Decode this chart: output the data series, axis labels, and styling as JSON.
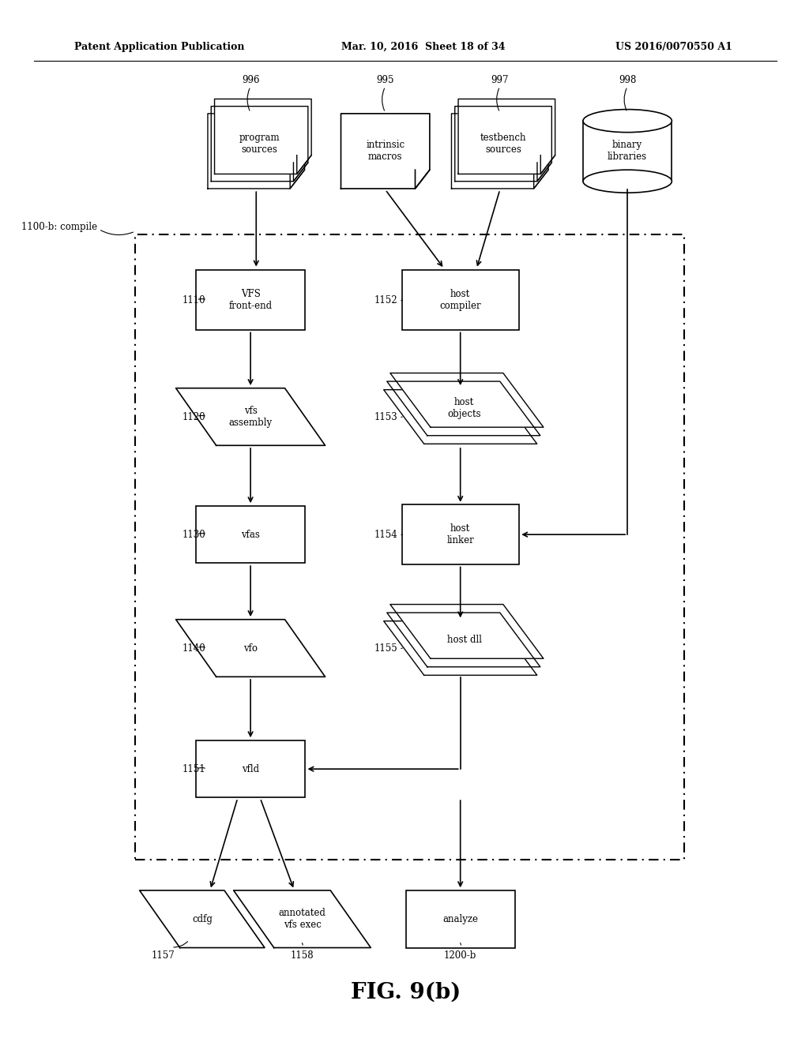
{
  "bg_color": "#ffffff",
  "header_left": "Patent Application Publication",
  "header_center": "Mar. 10, 2016  Sheet 18 of 34",
  "header_right": "US 2016/0070550 A1",
  "fig_label": "FIG. 9(b)",
  "line_color": "#000000",
  "text_color": "#000000"
}
